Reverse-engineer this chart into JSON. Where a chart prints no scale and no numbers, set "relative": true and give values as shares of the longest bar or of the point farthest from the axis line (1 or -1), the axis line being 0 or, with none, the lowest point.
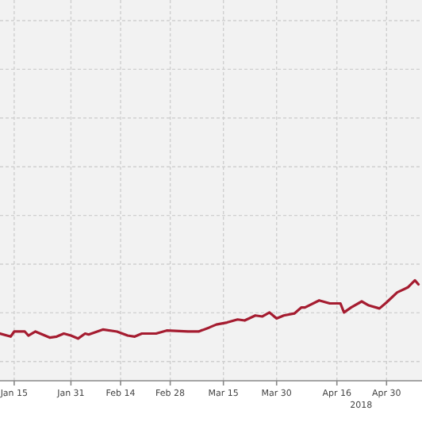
{
  "chart_data": {
    "type": "line",
    "relative": true,
    "grid": true,
    "x": [
      "2018-01-11",
      "2018-01-14",
      "2018-01-15",
      "2018-01-18",
      "2018-01-19",
      "2018-01-21",
      "2018-01-23",
      "2018-01-25",
      "2018-01-27",
      "2018-01-29",
      "2018-01-31",
      "2018-02-02",
      "2018-02-04",
      "2018-02-05",
      "2018-02-09",
      "2018-02-13",
      "2018-02-16",
      "2018-02-18",
      "2018-02-20",
      "2018-02-24",
      "2018-02-27",
      "2018-03-05",
      "2018-03-08",
      "2018-03-11",
      "2018-03-13",
      "2018-03-16",
      "2018-03-19",
      "2018-03-21",
      "2018-03-24",
      "2018-03-26",
      "2018-03-28",
      "2018-03-30",
      "2018-04-01",
      "2018-04-04",
      "2018-04-06",
      "2018-04-07",
      "2018-04-11",
      "2018-04-14",
      "2018-04-17",
      "2018-04-18",
      "2018-04-20",
      "2018-04-23",
      "2018-04-25",
      "2018-04-28",
      "2018-04-30",
      "2018-05-03",
      "2018-05-06",
      "2018-05-08",
      "2018-05-09"
    ],
    "series": [
      {
        "color": "#a51c30",
        "values": [
          0.47,
          0.44,
          0.49,
          0.49,
          0.45,
          0.49,
          0.46,
          0.43,
          0.44,
          0.47,
          0.45,
          0.42,
          0.47,
          0.46,
          0.51,
          0.49,
          0.45,
          0.44,
          0.47,
          0.47,
          0.5,
          0.49,
          0.49,
          0.53,
          0.56,
          0.58,
          0.61,
          0.6,
          0.65,
          0.64,
          0.68,
          0.62,
          0.65,
          0.67,
          0.73,
          0.73,
          0.8,
          0.77,
          0.77,
          0.68,
          0.73,
          0.79,
          0.75,
          0.72,
          0.78,
          0.88,
          0.93,
          1,
          0.96
        ]
      }
    ],
    "xlim": [
      "2018-01-11",
      "2018-05-10"
    ],
    "xticks": [
      {
        "value": "2018-01-15",
        "label": "Jan 15"
      },
      {
        "value": "2018-01-31",
        "label": "Jan 31"
      },
      {
        "value": "2018-02-14",
        "label": "Feb 14"
      },
      {
        "value": "2018-02-28",
        "label": "Feb 28"
      },
      {
        "value": "2018-03-15",
        "label": "Mar 15"
      },
      {
        "value": "2018-03-30",
        "label": "Mar 30"
      },
      {
        "value": "2018-04-16",
        "label": "Apr 16"
      },
      {
        "value": "2018-04-30",
        "label": "Apr 30"
      }
    ],
    "annotations": [
      "2018"
    ]
  }
}
